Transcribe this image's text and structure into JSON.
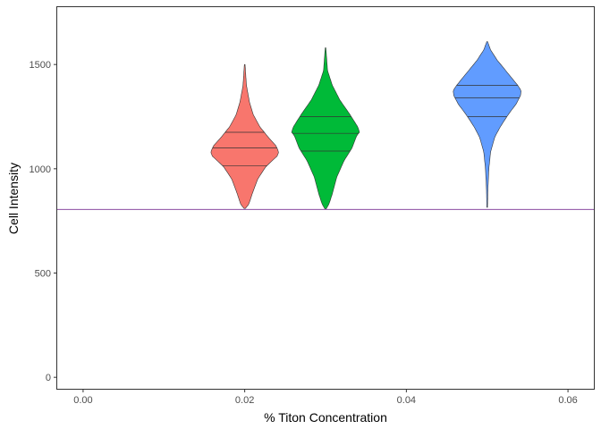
{
  "chart_data": {
    "type": "violin",
    "xlabel": "% Titon Concentration",
    "ylabel": "Cell Intensity",
    "xlim": [
      -0.0032,
      0.0632
    ],
    "ylim": [
      -55,
      1775
    ],
    "x_ticks": [
      0.0,
      0.02,
      0.04,
      0.06
    ],
    "x_tick_labels": [
      "0.00",
      "0.02",
      "0.04",
      "0.06"
    ],
    "y_ticks": [
      0,
      500,
      1000,
      1500
    ],
    "y_tick_labels": [
      "0",
      "500",
      "1000",
      "1500"
    ],
    "grid": false,
    "legend": "none",
    "hline": {
      "y": 805,
      "color": "#7b3294"
    },
    "violins": [
      {
        "x": 0.02,
        "color": "#F8766D",
        "quantiles": [
          1015,
          1100,
          1175
        ],
        "profile": [
          [
            810,
            0.02
          ],
          [
            830,
            0.12
          ],
          [
            880,
            0.22
          ],
          [
            950,
            0.38
          ],
          [
            1010,
            0.62
          ],
          [
            1060,
            0.95
          ],
          [
            1080,
            1.0
          ],
          [
            1110,
            0.92
          ],
          [
            1150,
            0.7
          ],
          [
            1200,
            0.45
          ],
          [
            1260,
            0.25
          ],
          [
            1320,
            0.14
          ],
          [
            1400,
            0.05
          ],
          [
            1500,
            0.01
          ]
        ]
      },
      {
        "x": 0.03,
        "color": "#00BA38",
        "quantiles": [
          1085,
          1170,
          1250
        ],
        "profile": [
          [
            808,
            0.02
          ],
          [
            830,
            0.1
          ],
          [
            880,
            0.2
          ],
          [
            960,
            0.33
          ],
          [
            1040,
            0.55
          ],
          [
            1100,
            0.78
          ],
          [
            1160,
            0.92
          ],
          [
            1175,
            1.0
          ],
          [
            1200,
            0.95
          ],
          [
            1260,
            0.72
          ],
          [
            1330,
            0.42
          ],
          [
            1400,
            0.2
          ],
          [
            1470,
            0.06
          ],
          [
            1580,
            0.01
          ]
        ]
      },
      {
        "x": 0.05,
        "color": "#619CFF",
        "quantiles": [
          1250,
          1340,
          1400
        ],
        "profile": [
          [
            815,
            0.01
          ],
          [
            900,
            0.02
          ],
          [
            1000,
            0.05
          ],
          [
            1080,
            0.1
          ],
          [
            1150,
            0.22
          ],
          [
            1200,
            0.38
          ],
          [
            1260,
            0.62
          ],
          [
            1310,
            0.85
          ],
          [
            1350,
            0.98
          ],
          [
            1375,
            1.0
          ],
          [
            1400,
            0.9
          ],
          [
            1450,
            0.65
          ],
          [
            1520,
            0.3
          ],
          [
            1570,
            0.1
          ],
          [
            1610,
            0.01
          ]
        ]
      }
    ]
  }
}
